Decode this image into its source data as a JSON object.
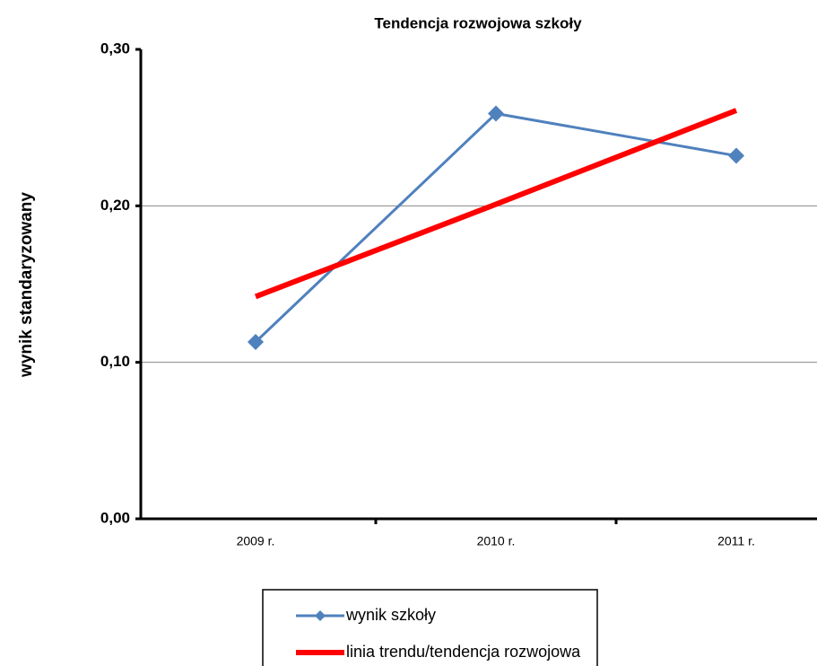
{
  "chart_data": {
    "type": "line",
    "title": "Tendencja rozwojowa szkoły",
    "y_label": "wynik standaryzowany",
    "categories": [
      "2009 r.",
      "2010 r.",
      "2011 r."
    ],
    "series": [
      {
        "name": "wynik szkoły",
        "color": "#4f81bd",
        "values": [
          0.113,
          0.259,
          0.232
        ]
      },
      {
        "name": "linia trendu/tendencja rozwojowa",
        "color": "#ff0000",
        "values": [
          0.142,
          0.201,
          0.261
        ]
      }
    ],
    "ylim": [
      0,
      0.3
    ],
    "yticks": [
      {
        "value": 0,
        "label": "0,00"
      },
      {
        "value": 0.1,
        "label": "0,10"
      },
      {
        "value": 0.2,
        "label": "0,20"
      },
      {
        "value": 0.3,
        "label": "0,30"
      }
    ],
    "grid": true
  }
}
